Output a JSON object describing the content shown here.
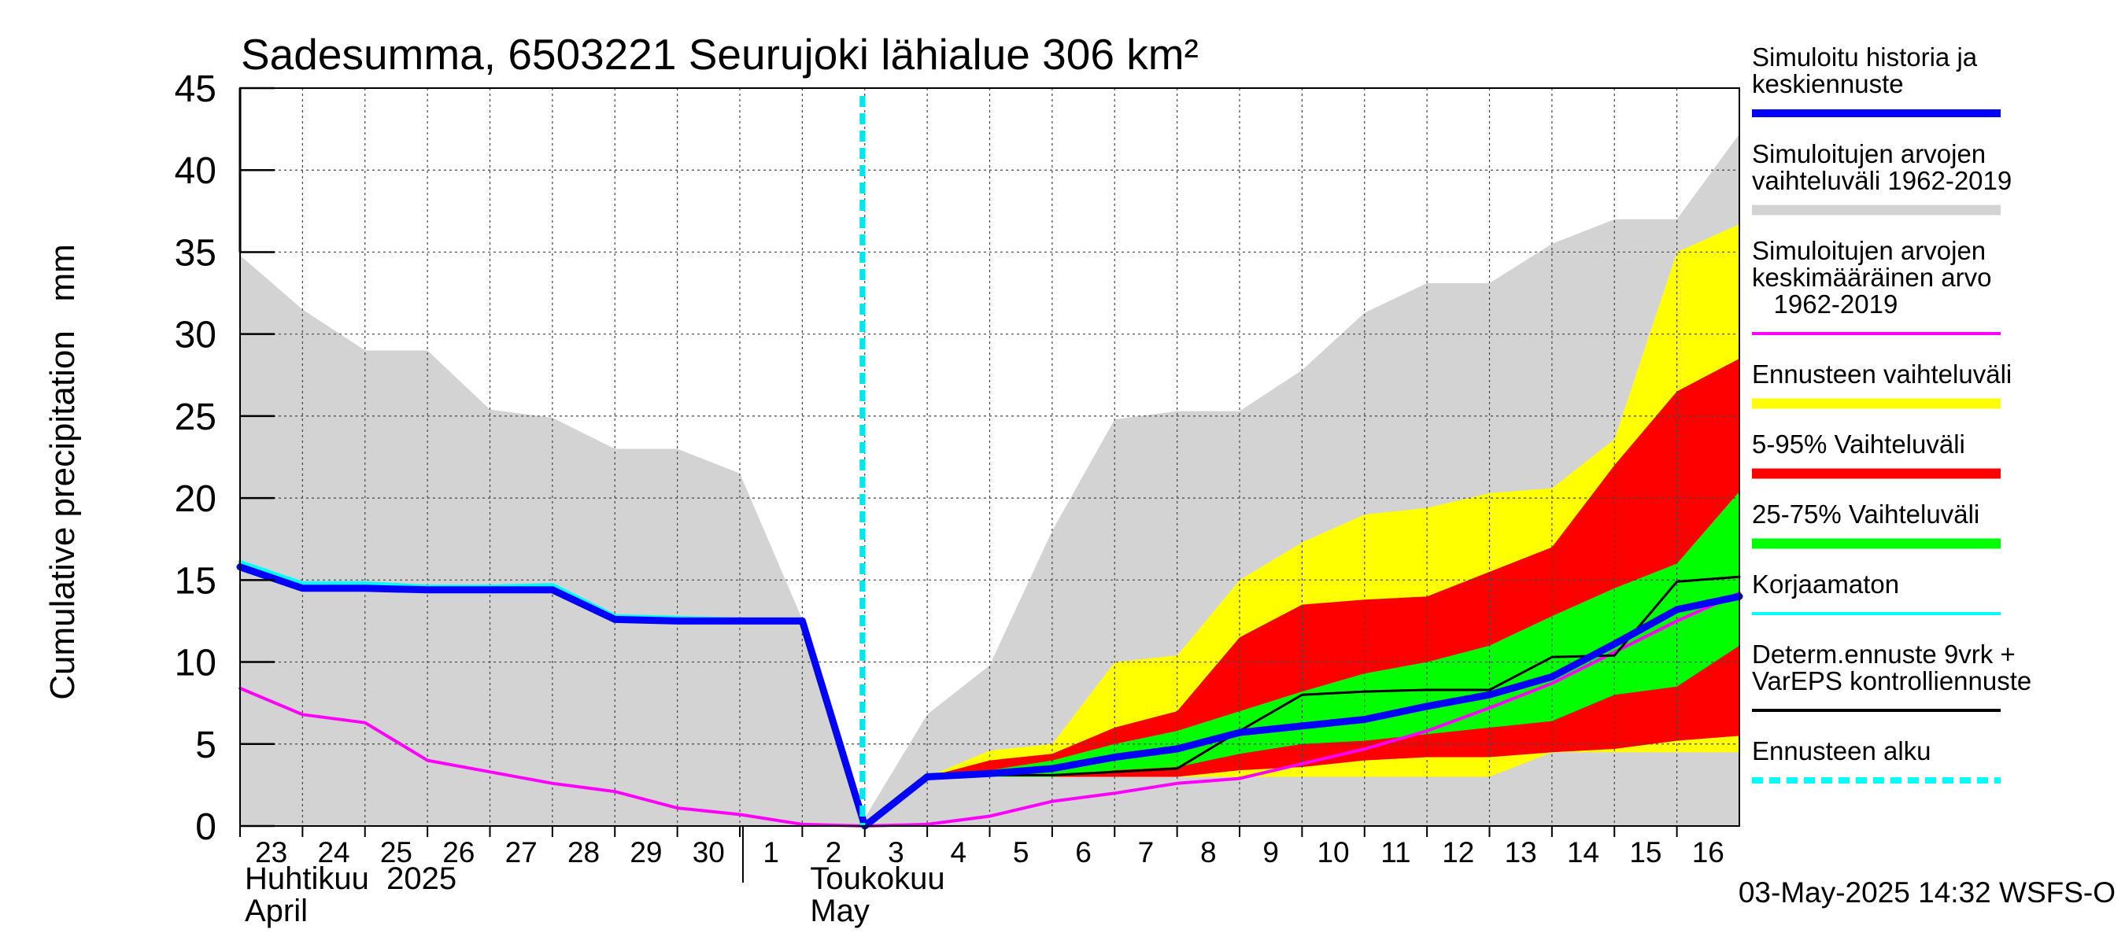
{
  "chart_data": {
    "type": "area",
    "title": "Sadesumma, 6503221 Seurujoki lähialue 306 km²",
    "ylabel": "Cumulative precipitation   mm",
    "ylim": [
      0,
      45
    ],
    "yticks": [
      0,
      5,
      10,
      15,
      20,
      25,
      30,
      35,
      40,
      45
    ],
    "x_day_labels": [
      "23",
      "24",
      "25",
      "26",
      "27",
      "28",
      "29",
      "30",
      "1",
      "2",
      "3",
      "4",
      "5",
      "6",
      "7",
      "8",
      "9",
      "10",
      "11",
      "12",
      "13",
      "14",
      "15",
      "16"
    ],
    "x_day_positions": [
      0,
      1,
      2,
      3,
      4,
      5,
      6,
      7,
      8,
      9,
      10,
      11,
      12,
      13,
      14,
      15,
      16,
      17,
      18,
      19,
      20,
      21,
      22,
      23
    ],
    "xlim": [
      0,
      24
    ],
    "month_labels": [
      {
        "line1": "Huhtikuu  2025",
        "line2": "April",
        "x": 0
      },
      {
        "line1": "Toukokuu",
        "line2": "May",
        "x": 9.05
      }
    ],
    "forecast_start_x": 10,
    "timestamp": "03-May-2025 14:32 WSFS-O",
    "legend": [
      {
        "label": "Simuloitu historia ja\nkeskiennuste",
        "color": "#0000ff",
        "style": "thick"
      },
      {
        "label": "Simuloitujen arvojen\nvaihteluväli 1962-2019",
        "color": "#d3d3d3",
        "style": "band"
      },
      {
        "label": "Simuloitujen arvojen\nkeskimääräinen arvo\n   1962-2019",
        "color": "#ff00ff",
        "style": "line"
      },
      {
        "label": "Ennusteen vaihteluväli",
        "color": "#ffff00",
        "style": "band"
      },
      {
        "label": "5-95% Vaihteluväli",
        "color": "#ff0000",
        "style": "band"
      },
      {
        "label": "25-75% Vaihteluväli",
        "color": "#00ff00",
        "style": "band"
      },
      {
        "label": "Korjaamaton",
        "color": "#00ffff",
        "style": "line"
      },
      {
        "label": "Determ.ennuste 9vrk +\nVarEPS kontrolliennuste",
        "color": "#000000",
        "style": "line"
      },
      {
        "label": "Ennusteen alku",
        "color": "#00ffff",
        "style": "dashed"
      }
    ],
    "series": {
      "hist_range": {
        "x": [
          0,
          1,
          2,
          3,
          4,
          5,
          6,
          7,
          8,
          9,
          10,
          11,
          12,
          13,
          14,
          15,
          16,
          17,
          18,
          19,
          20,
          21,
          22,
          23,
          24
        ],
        "upper": [
          34.8,
          31.5,
          29.0,
          29.0,
          25.4,
          24.9,
          23.0,
          23.0,
          21.5,
          12.6,
          0.5,
          6.8,
          9.8,
          18.0,
          24.8,
          25.3,
          25.3,
          27.8,
          31.3,
          33.1,
          33.1,
          35.5,
          37.0,
          37.0,
          42.2
        ],
        "lower": [
          0,
          0,
          0,
          0,
          0,
          0,
          0,
          0,
          0,
          0,
          0,
          0,
          0,
          0,
          0,
          0,
          0,
          0,
          0,
          0,
          0,
          0,
          0,
          0,
          0
        ]
      },
      "forecast_range": {
        "x": [
          10,
          11,
          12,
          13,
          14,
          15,
          16,
          17,
          18,
          19,
          20,
          21,
          22,
          23,
          24
        ],
        "upper": [
          0,
          3.0,
          4.6,
          5.0,
          10.0,
          10.4,
          15.0,
          17.3,
          19.0,
          19.4,
          20.3,
          20.6,
          23.6,
          35.0,
          36.7
        ],
        "lower": [
          0,
          3.0,
          3.0,
          3.0,
          3.0,
          3.0,
          3.0,
          3.0,
          3.0,
          3.0,
          3.0,
          4.5,
          4.5,
          4.5,
          4.5
        ]
      },
      "p5_95": {
        "x": [
          10,
          11,
          12,
          13,
          14,
          15,
          16,
          17,
          18,
          19,
          20,
          21,
          22,
          23,
          24
        ],
        "upper": [
          0,
          3.0,
          4.0,
          4.4,
          6.0,
          7.0,
          11.5,
          13.5,
          13.8,
          14.0,
          15.5,
          17.0,
          22.0,
          26.5,
          28.5
        ],
        "lower": [
          0,
          3.0,
          3.0,
          3.0,
          3.0,
          3.0,
          3.4,
          3.6,
          4.0,
          4.2,
          4.2,
          4.5,
          4.7,
          5.2,
          5.5
        ]
      },
      "p25_75": {
        "x": [
          10,
          11,
          12,
          13,
          14,
          15,
          16,
          17,
          18,
          19,
          20,
          21,
          22,
          23,
          24
        ],
        "upper": [
          0,
          3.0,
          3.4,
          4.0,
          5.0,
          5.8,
          7.0,
          8.2,
          9.3,
          10.0,
          11.0,
          12.8,
          14.5,
          16.0,
          20.4
        ],
        "lower": [
          0,
          3.0,
          3.0,
          3.0,
          3.4,
          3.6,
          4.4,
          5.0,
          5.2,
          5.6,
          6.0,
          6.4,
          8.0,
          8.5,
          11.0
        ]
      },
      "mean_1962_2019": {
        "x": [
          0,
          1,
          2,
          3,
          4,
          5,
          6,
          7,
          8,
          9,
          10,
          11,
          12,
          13,
          14,
          15,
          16,
          17,
          18,
          19,
          20,
          21,
          22,
          23,
          24
        ],
        "y": [
          8.4,
          6.8,
          6.3,
          4.0,
          3.3,
          2.6,
          2.1,
          1.1,
          0.7,
          0.1,
          0.0,
          0.1,
          0.6,
          1.5,
          2.0,
          2.6,
          2.9,
          3.8,
          4.7,
          5.8,
          7.2,
          8.7,
          10.6,
          12.5,
          14.2
        ]
      },
      "korjaamaton": {
        "x": [
          0,
          1,
          2,
          3,
          4,
          5,
          6,
          7,
          8,
          9,
          10
        ],
        "y": [
          16.1,
          14.8,
          14.8,
          14.6,
          14.6,
          14.7,
          12.8,
          12.7,
          12.6,
          12.6,
          0.0
        ]
      },
      "determ": {
        "x": [
          10,
          11,
          12,
          13,
          14,
          15,
          16,
          17,
          18,
          19,
          20,
          21,
          22,
          23,
          24
        ],
        "y": [
          0.0,
          3.0,
          3.1,
          3.1,
          3.3,
          3.5,
          5.8,
          8.0,
          8.2,
          8.3,
          8.3,
          10.3,
          10.4,
          14.9,
          15.2
        ]
      },
      "simulated": {
        "x": [
          0,
          1,
          2,
          3,
          4,
          5,
          6,
          7,
          8,
          9,
          10,
          11,
          12,
          13,
          14,
          15,
          16,
          17,
          18,
          19,
          20,
          21,
          22,
          23,
          24
        ],
        "y": [
          15.8,
          14.5,
          14.5,
          14.4,
          14.4,
          14.4,
          12.6,
          12.5,
          12.5,
          12.5,
          0.0,
          3.0,
          3.2,
          3.5,
          4.2,
          4.7,
          5.7,
          6.1,
          6.5,
          7.3,
          8.0,
          9.1,
          11.1,
          13.2,
          14.0
        ]
      }
    }
  }
}
